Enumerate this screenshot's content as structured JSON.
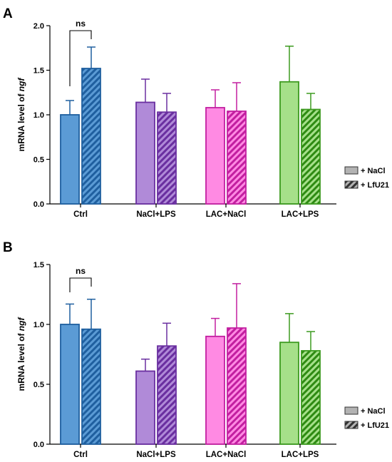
{
  "figure": {
    "panels": [
      {
        "letter": "A"
      },
      {
        "letter": "B"
      }
    ]
  },
  "legend": {
    "items": [
      {
        "label": "+ NaCl",
        "pattern": "solid"
      },
      {
        "label": "+ LfU21",
        "pattern": "hatched"
      }
    ]
  },
  "colors": {
    "Ctrl": {
      "fill": "#5b9bd5",
      "stroke": "#1f5f9f",
      "hatch": "#1f5f9f"
    },
    "NaCl+LPS": {
      "fill": "#b08ad8",
      "stroke": "#6a2fa0",
      "hatch": "#6a2fa0"
    },
    "LAC+NaCl": {
      "fill": "#ff8ae3",
      "stroke": "#c21fa0",
      "hatch": "#c21fa0"
    },
    "LAC+LPS": {
      "fill": "#a6e08a",
      "stroke": "#3c9a1f",
      "hatch": "#2e8a12"
    },
    "legend": {
      "fill": "#b3b3b3",
      "stroke": "#333333",
      "hatch": "#333333"
    }
  },
  "chart_data": [
    {
      "type": "bar",
      "panel": "A",
      "categories": [
        "Ctrl",
        "NaCl+LPS",
        "LAC+NaCl",
        "LAC+LPS"
      ],
      "series": [
        {
          "name": "+ NaCl",
          "values": [
            1.0,
            1.14,
            1.08,
            1.37
          ],
          "errors": [
            0.16,
            0.26,
            0.2,
            0.4
          ]
        },
        {
          "name": "+ LfU21",
          "values": [
            1.52,
            1.03,
            1.04,
            1.06
          ],
          "errors": [
            0.24,
            0.21,
            0.32,
            0.18
          ]
        }
      ],
      "ylabel_prefix": "mRNA level of ",
      "ylabel_gene": "ngf",
      "xlabel": "",
      "title": "",
      "ylim": [
        0,
        2.0
      ],
      "yticks": [
        "0.0",
        "0.5",
        "1.0",
        "1.5",
        "2.0"
      ],
      "ytick_values": [
        0,
        0.5,
        1.0,
        1.5,
        2.0
      ],
      "annotation": {
        "text": "ns",
        "category": "Ctrl"
      },
      "legend_position": "right",
      "grid": false
    },
    {
      "type": "bar",
      "panel": "B",
      "categories": [
        "Ctrl",
        "NaCl+LPS",
        "LAC+NaCl",
        "LAC+LPS"
      ],
      "series": [
        {
          "name": "+ NaCl",
          "values": [
            1.0,
            0.61,
            0.9,
            0.85
          ],
          "errors": [
            0.17,
            0.1,
            0.15,
            0.24
          ]
        },
        {
          "name": "+ LfU21",
          "values": [
            0.96,
            0.82,
            0.97,
            0.78
          ],
          "errors": [
            0.25,
            0.19,
            0.37,
            0.16
          ]
        }
      ],
      "ylabel_prefix": "mRNA level of ",
      "ylabel_gene": "ngf",
      "xlabel": "",
      "title": "",
      "ylim": [
        0,
        1.5
      ],
      "yticks": [
        "0.0",
        "0.5",
        "1.0",
        "1.5"
      ],
      "ytick_values": [
        0,
        0.5,
        1.0,
        1.5
      ],
      "annotation": {
        "text": "ns",
        "category": "Ctrl"
      },
      "legend_position": "right",
      "grid": false
    }
  ]
}
